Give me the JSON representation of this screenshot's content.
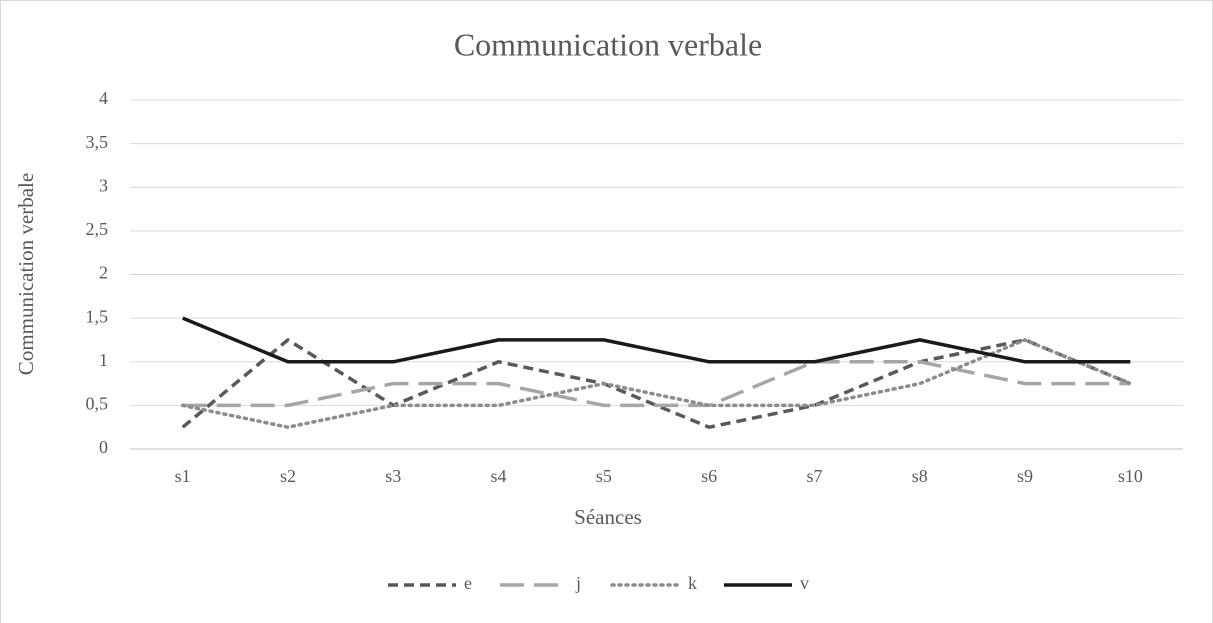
{
  "chart_data": {
    "type": "line",
    "title": "Communication verbale",
    "x_label": "Séances",
    "y_label": "Communication verbale",
    "categories": [
      "s1",
      "s2",
      "s3",
      "s4",
      "s5",
      "s6",
      "s7",
      "s8",
      "s9",
      "s10"
    ],
    "series": [
      {
        "name": "e",
        "color": "#595959",
        "dash": "dash",
        "values": [
          0.25,
          1.25,
          0.5,
          1,
          0.75,
          0.25,
          0.5,
          1,
          1.25,
          0.75
        ]
      },
      {
        "name": "j",
        "color": "#a6a6a6",
        "dash": "longdash",
        "values": [
          0.5,
          0.5,
          0.75,
          0.75,
          0.5,
          0.5,
          1,
          1,
          0.75,
          0.75
        ]
      },
      {
        "name": "k",
        "color": "#8c8c8c",
        "dash": "dot",
        "values": [
          0.5,
          0.25,
          0.5,
          0.5,
          0.75,
          0.5,
          0.5,
          0.75,
          1.25,
          0.75
        ]
      },
      {
        "name": "v",
        "color": "#1a1a1a",
        "dash": "solid",
        "values": [
          1.5,
          1,
          1,
          1.25,
          1.25,
          1,
          1,
          1.25,
          1,
          1
        ]
      }
    ],
    "ylim": [
      0,
      4
    ],
    "yticks": [
      0,
      {
        "value": 0.5,
        "label": "0,5"
      },
      1,
      {
        "value": 1.5,
        "label": "1,5"
      },
      2,
      {
        "value": 2.5,
        "label": "2,5"
      },
      3,
      {
        "value": 3.5,
        "label": "3,5"
      },
      4
    ],
    "grid": true,
    "legend": "bottom"
  }
}
